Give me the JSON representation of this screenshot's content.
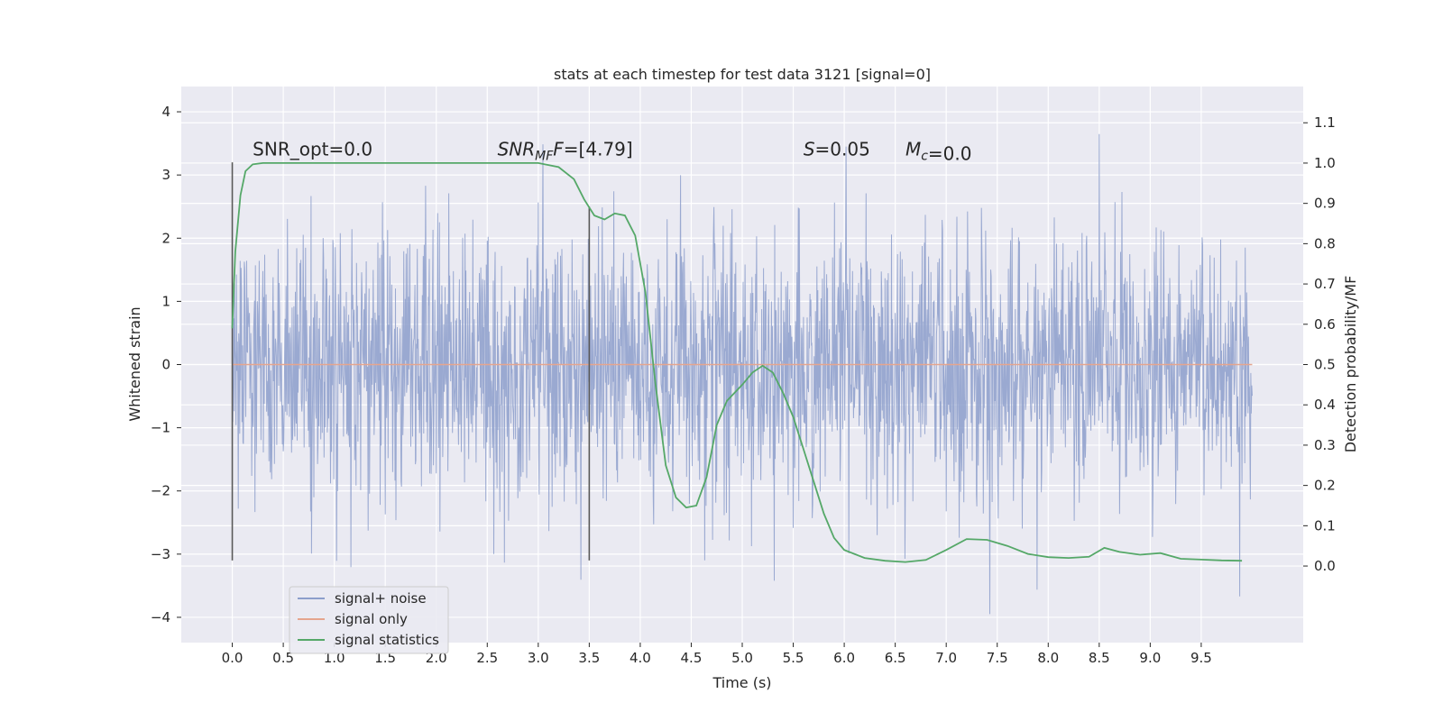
{
  "chart_data": {
    "type": "line",
    "title": "stats at each timestep for test data 3121 [signal=0]",
    "xlabel": "Time (s)",
    "ylabel_left": "Whitened strain",
    "ylabel_right": "Detection probability/MF",
    "xlim": [
      -0.5,
      10.5
    ],
    "ylim_left": [
      -4.4,
      4.4
    ],
    "ylim_right": [
      -0.19,
      1.19
    ],
    "xticks": [
      0.0,
      0.5,
      1.0,
      1.5,
      2.0,
      2.5,
      3.0,
      3.5,
      4.0,
      4.5,
      5.0,
      5.5,
      6.0,
      6.5,
      7.0,
      7.5,
      8.0,
      8.5,
      9.0,
      9.5
    ],
    "xtick_labels": [
      "0.0",
      "0.5",
      "1.0",
      "1.5",
      "2.0",
      "2.5",
      "3.0",
      "3.5",
      "4.0",
      "4.5",
      "5.0",
      "5.5",
      "6.0",
      "6.5",
      "7.0",
      "7.5",
      "8.0",
      "8.5",
      "9.0",
      "9.5"
    ],
    "yticks_left": [
      -4,
      -3,
      -2,
      -1,
      0,
      1,
      2,
      3,
      4
    ],
    "ytick_labels_left": [
      "−4",
      "−3",
      "−2",
      "−1",
      "0",
      "1",
      "2",
      "3",
      "4"
    ],
    "yticks_right": [
      0.0,
      0.1,
      0.2,
      0.3,
      0.4,
      0.5,
      0.6,
      0.7,
      0.8,
      0.9,
      1.0,
      1.1
    ],
    "ytick_labels_right": [
      "0.0",
      "0.1",
      "0.2",
      "0.3",
      "0.4",
      "0.5",
      "0.6",
      "0.7",
      "0.8",
      "0.9",
      "1.0",
      "1.1"
    ],
    "grid": true,
    "legend_position": "lower-left",
    "series": [
      {
        "name": "signal+ noise",
        "axis": "left",
        "color": "#8c9ecb",
        "kind": "noise",
        "x_range": [
          0,
          10
        ],
        "y_range_typical": [
          -2.5,
          2.5
        ],
        "y_extremes": [
          -3.95,
          4.05
        ]
      },
      {
        "name": "signal only",
        "axis": "left",
        "color": "#e5a58e",
        "x": [
          0,
          10
        ],
        "y": [
          0,
          0
        ]
      },
      {
        "name": "signal statistics",
        "axis": "right",
        "color": "#55a868",
        "x": [
          0.0,
          0.03,
          0.08,
          0.13,
          0.2,
          0.3,
          0.5,
          1.0,
          1.5,
          2.0,
          2.5,
          3.0,
          3.2,
          3.35,
          3.45,
          3.55,
          3.65,
          3.75,
          3.85,
          3.95,
          4.05,
          4.15,
          4.25,
          4.35,
          4.45,
          4.55,
          4.65,
          4.75,
          4.85,
          5.0,
          5.1,
          5.2,
          5.3,
          5.4,
          5.5,
          5.6,
          5.7,
          5.8,
          5.9,
          6.0,
          6.2,
          6.4,
          6.6,
          6.8,
          7.0,
          7.2,
          7.4,
          7.6,
          7.8,
          8.0,
          8.2,
          8.4,
          8.55,
          8.7,
          8.9,
          9.1,
          9.3,
          9.5,
          9.7,
          9.9
        ],
        "y": [
          0.59,
          0.78,
          0.92,
          0.98,
          0.997,
          1.0,
          1.0,
          1.0,
          1.0,
          1.0,
          1.0,
          1.0,
          0.99,
          0.96,
          0.91,
          0.87,
          0.86,
          0.875,
          0.87,
          0.82,
          0.68,
          0.45,
          0.25,
          0.17,
          0.145,
          0.15,
          0.22,
          0.35,
          0.41,
          0.45,
          0.48,
          0.497,
          0.48,
          0.43,
          0.37,
          0.29,
          0.21,
          0.13,
          0.07,
          0.04,
          0.02,
          0.013,
          0.01,
          0.015,
          0.04,
          0.067,
          0.065,
          0.05,
          0.03,
          0.022,
          0.02,
          0.023,
          0.045,
          0.035,
          0.028,
          0.032,
          0.018,
          0.016,
          0.014,
          0.013
        ]
      }
    ],
    "vlines": [
      {
        "x": 0.0,
        "ymin": -3.1,
        "ymax": 3.2
      },
      {
        "x": 3.5,
        "ymin": -3.1,
        "ymax": 2.5
      }
    ],
    "annotations": [
      {
        "text": "SNR_opt=0.0",
        "x": 0.2,
        "y": 3.25
      },
      {
        "text": "=[4.79]",
        "math": "SNR_MF",
        "x": 2.6,
        "y": 3.25
      },
      {
        "text": "=0.05",
        "math": "S",
        "x": 5.6,
        "y": 3.25
      },
      {
        "text": "=0.0",
        "math": "M_c",
        "x": 6.6,
        "y": 3.25
      }
    ]
  },
  "colors": {
    "axes_bg": "#eaeaf2",
    "grid": "#ffffff",
    "noise": "#8c9ecb",
    "signal": "#e5a58e",
    "statistic": "#55a868",
    "vline": "#595959"
  }
}
